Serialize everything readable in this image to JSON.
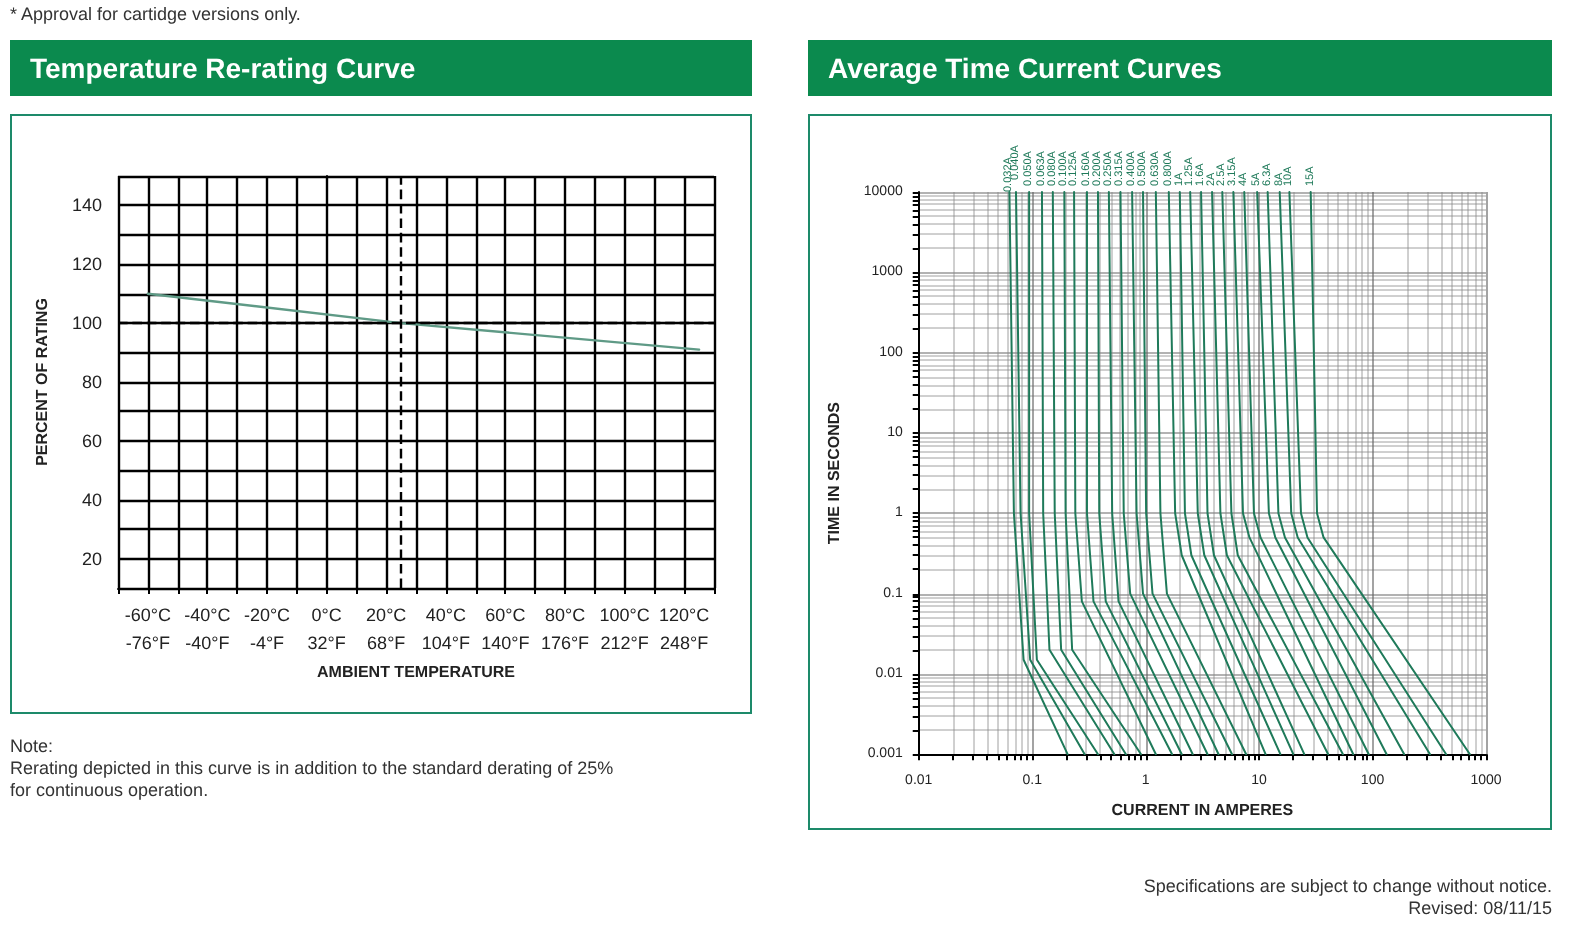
{
  "chart_data": [
    {
      "type": "line",
      "title": "Temperature Re-rating Curve",
      "xlabel": "AMBIENT TEMPERATURE",
      "ylabel": "PERCENT OF RATING",
      "annotations": [
        "* Approval for cartidge versions only.",
        "Note:\nRerating depicted in this curve is in addition to the standard derating of 25%\nfor continuous operation."
      ],
      "x": [
        -60,
        25,
        125
      ],
      "series": [
        {
          "color": "#5f9a86",
          "values": [
            110,
            100,
            91
          ]
        }
      ],
      "xlim": [
        -70,
        130
      ],
      "xticks": [
        {
          "value": -70,
          "label": null
        },
        {
          "value": -60,
          "label": "-60°C"
        },
        {
          "value": -50,
          "label": null
        },
        {
          "value": -40,
          "label": "-40°C"
        },
        {
          "value": -30,
          "label": null
        },
        {
          "value": -20,
          "label": "-20°C"
        },
        {
          "value": -10,
          "label": null
        },
        {
          "value": 0,
          "label": "0°C"
        },
        {
          "value": 10,
          "label": null
        },
        {
          "value": 20,
          "label": "20°C"
        },
        {
          "value": 30,
          "label": null
        },
        {
          "value": 40,
          "label": "40°C"
        },
        {
          "value": 50,
          "label": null
        },
        {
          "value": 60,
          "label": "60°C"
        },
        {
          "value": 70,
          "label": null
        },
        {
          "value": 80,
          "label": "80°C"
        },
        {
          "value": 90,
          "label": null
        },
        {
          "value": 100,
          "label": "100°C"
        },
        {
          "value": 110,
          "label": null
        },
        {
          "value": 120,
          "label": "120°C"
        },
        {
          "value": 130,
          "label": null
        }
      ],
      "x2lim": [
        -94,
        266
      ],
      "x2ticks": [
        {
          "value": -76,
          "label": "-76°F"
        },
        {
          "value": -40,
          "label": "-40°F"
        },
        {
          "value": -4,
          "label": "-4°F"
        },
        {
          "value": 32,
          "label": "32°F"
        },
        {
          "value": 68,
          "label": "68°F"
        },
        {
          "value": 104,
          "label": "104°F"
        },
        {
          "value": 140,
          "label": "140°F"
        },
        {
          "value": 176,
          "label": "176°F"
        },
        {
          "value": 212,
          "label": "212°F"
        },
        {
          "value": 248,
          "label": "248°F"
        }
      ],
      "ylim": [
        10,
        150
      ],
      "yticks": [
        {
          "value": 10,
          "label": null
        },
        20,
        {
          "value": 30,
          "label": null
        },
        40,
        {
          "value": 50,
          "label": null
        },
        60,
        {
          "value": 70,
          "label": null
        },
        80,
        {
          "value": 90,
          "label": null
        },
        100,
        {
          "value": 110,
          "label": null
        },
        120,
        {
          "value": 130,
          "label": null
        },
        140,
        {
          "value": 150,
          "label": null
        }
      ],
      "ref_lines": [
        {
          "axis": "x",
          "value": 25,
          "line_style": "dashed",
          "color": "#000000"
        },
        {
          "axis": "y",
          "value": 100,
          "line_style": "dashed",
          "color": "#000000"
        }
      ],
      "grid": true,
      "legend": false,
      "marker": "none",
      "line_style": "solid"
    },
    {
      "type": "line",
      "title": "Average Time Current Curves",
      "xlabel": "CURRENT IN AMPERES",
      "ylabel": "TIME IN SECONDS",
      "log": "xy",
      "annotations": [
        "Specifications are subject to change without notice.\nRevised: 08/11/15"
      ],
      "xlim": [
        0.01,
        1000
      ],
      "xticks": [
        0.01,
        0.1,
        1,
        10,
        100,
        1000
      ],
      "ylim": [
        0.001,
        10000
      ],
      "yticks": [
        0.001,
        0.01,
        0.1,
        1,
        10,
        100,
        1000,
        10000
      ],
      "grid": true,
      "legend": false,
      "marker": "none",
      "line_style": "solid",
      "series": [
        {
          "name": "0.032A",
          "color": "#1f7a5a",
          "x": [
            0.063,
            0.069,
            0.084,
            0.205
          ],
          "values": [
            10000,
            1,
            0.015,
            0.001
          ]
        },
        {
          "name": "0.040A",
          "color": "#1f7a5a",
          "x": [
            0.072,
            0.079,
            0.096,
            0.29
          ],
          "values": [
            10000,
            1,
            0.015,
            0.001
          ]
        },
        {
          "name": "0.050A",
          "color": "#1f7a5a",
          "x": [
            0.094,
            0.094,
            0.11,
            0.38
          ],
          "values": [
            10000,
            1,
            0.015,
            0.001
          ]
        },
        {
          "name": "0.063A",
          "color": "#1f7a5a",
          "x": [
            0.122,
            0.125,
            0.142,
            0.53
          ],
          "values": [
            10000,
            1,
            0.02,
            0.001
          ]
        },
        {
          "name": "0.080A",
          "color": "#1f7a5a",
          "x": [
            0.152,
            0.158,
            0.18,
            0.67
          ],
          "values": [
            10000,
            1,
            0.02,
            0.001
          ]
        },
        {
          "name": "0.100A",
          "color": "#1f7a5a",
          "x": [
            0.192,
            0.197,
            0.225,
            0.91
          ],
          "values": [
            10000,
            1,
            0.02,
            0.001
          ]
        },
        {
          "name": "0.125A",
          "color": "#1f7a5a",
          "x": [
            0.234,
            0.24,
            0.274,
            1.23
          ],
          "values": [
            10000,
            1,
            0.08,
            0.001
          ]
        },
        {
          "name": "0.160A",
          "color": "#1f7a5a",
          "x": [
            0.304,
            0.304,
            0.347,
            1.71
          ],
          "values": [
            10000,
            1,
            0.08,
            0.001
          ]
        },
        {
          "name": "0.200A",
          "color": "#1f7a5a",
          "x": [
            0.38,
            0.39,
            0.445,
            2.08
          ],
          "values": [
            10000,
            1,
            0.08,
            0.001
          ]
        },
        {
          "name": "0.250A",
          "color": "#1f7a5a",
          "x": [
            0.474,
            0.507,
            0.577,
            2.6
          ],
          "values": [
            10000,
            1,
            0.08,
            0.001
          ]
        },
        {
          "name": "0.315A",
          "color": "#1f7a5a",
          "x": [
            0.6,
            0.641,
            0.731,
            3.51
          ],
          "values": [
            10000,
            1,
            0.1,
            0.001
          ]
        },
        {
          "name": "0.400A",
          "color": "#1f7a5a",
          "x": [
            0.76,
            0.832,
            0.948,
            4.39
          ],
          "values": [
            10000,
            1,
            0.1,
            0.001
          ]
        },
        {
          "name": "0.500A",
          "color": "#1f7a5a",
          "x": [
            0.948,
            1.01,
            1.15,
            5.77
          ],
          "values": [
            10000,
            1,
            0.1,
            0.001
          ]
        },
        {
          "name": "0.630A",
          "color": "#1f7a5a",
          "x": [
            1.23,
            1.35,
            1.54,
            7.69
          ],
          "values": [
            10000,
            1,
            0.1,
            0.001
          ]
        },
        {
          "name": "0.800A",
          "color": "#1f7a5a",
          "x": [
            1.6,
            1.82,
            2.08,
            11.4
          ],
          "values": [
            10000,
            1,
            0.3,
            0.001
          ]
        },
        {
          "name": "1A",
          "color": "#1f7a5a",
          "x": [
            2.0,
            2.22,
            2.53,
            15.4
          ],
          "values": [
            10000,
            1,
            0.3,
            0.001
          ]
        },
        {
          "name": "1.25A",
          "color": "#1f7a5a",
          "x": [
            2.47,
            2.88,
            3.29,
            20
          ],
          "values": [
            10000,
            1,
            0.3,
            0.001
          ]
        },
        {
          "name": "1.6A",
          "color": "#1f7a5a",
          "x": [
            3.08,
            3.51,
            4.0,
            25
          ],
          "values": [
            10000,
            1,
            0.3,
            0.001
          ]
        },
        {
          "name": "2A",
          "color": "#1f7a5a",
          "x": [
            3.85,
            4.56,
            5.2,
            40.6
          ],
          "values": [
            10000,
            1,
            0.3,
            0.001
          ]
        },
        {
          "name": "2.5A",
          "color": "#1f7a5a",
          "x": [
            4.74,
            5.7,
            6.49,
            54.8
          ],
          "values": [
            10000,
            1,
            0.3,
            0.001
          ]
        },
        {
          "name": "3.15A",
          "color": "#1f7a5a",
          "x": [
            5.93,
            7.21,
            8.22,
            67.6
          ],
          "values": [
            10000,
            1,
            0.5,
            0.001
          ]
        },
        {
          "name": "4A",
          "color": "#1f7a5a",
          "x": [
            7.4,
            9.01,
            10.3,
            92.5
          ],
          "values": [
            10000,
            1,
            0.5,
            0.001
          ]
        },
        {
          "name": "5A",
          "color": "#1f7a5a",
          "x": [
            9.61,
            12.2,
            13.9,
            133
          ],
          "values": [
            10000,
            1,
            0.5,
            0.001
          ]
        },
        {
          "name": "6.3A",
          "color": "#1f7a5a",
          "x": [
            11.9,
            14.8,
            16.9,
            190
          ],
          "values": [
            10000,
            1,
            0.5,
            0.001
          ]
        },
        {
          "name": "8A",
          "color": "#1f7a5a",
          "x": [
            15.2,
            19.2,
            21.9,
            321
          ],
          "values": [
            10000,
            1,
            0.5,
            0.001
          ]
        },
        {
          "name": "10A",
          "color": "#1f7a5a",
          "x": [
            18.5,
            23.4,
            26.7,
            445
          ],
          "values": [
            10000,
            1,
            0.5,
            0.001
          ]
        },
        {
          "name": "15A",
          "color": "#1f7a5a",
          "x": [
            28.5,
            32.4,
            37.0,
            721
          ],
          "values": [
            10000,
            1,
            0.5,
            0.001
          ]
        }
      ]
    }
  ]
}
